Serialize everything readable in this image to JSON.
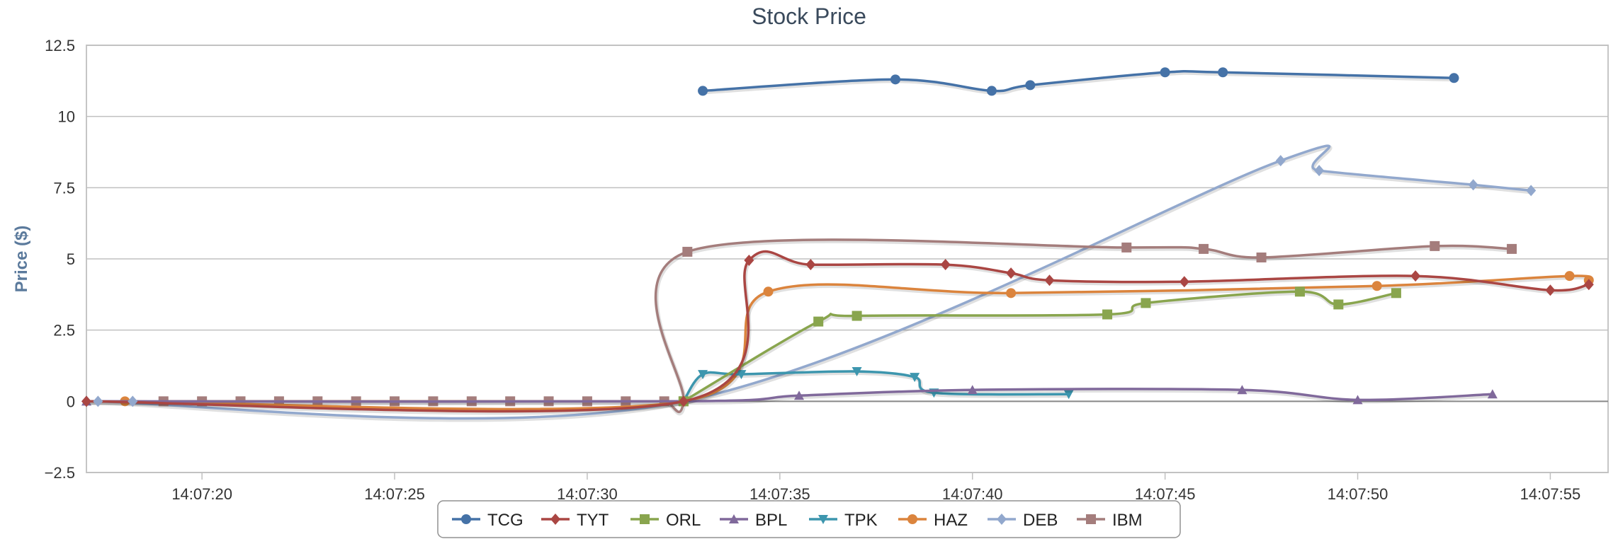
{
  "chart_data": {
    "type": "line",
    "title": "Stock Price",
    "ylabel": "Price ($)",
    "xlabel": "",
    "ylim": [
      -2.5,
      12.5
    ],
    "yticks": [
      -2.5,
      0,
      2.5,
      5,
      7.5,
      10,
      12.5
    ],
    "ytick_labels": [
      "−2.5",
      "0",
      "2.5",
      "5",
      "7.5",
      "10",
      "12.5"
    ],
    "xlim": [
      "14:07:17",
      "14:07:56.5"
    ],
    "xticks": [
      "14:07:20",
      "14:07:25",
      "14:07:30",
      "14:07:35",
      "14:07:40",
      "14:07:45",
      "14:07:50",
      "14:07:55"
    ],
    "grid": "horizontal",
    "legend": "bottom-center",
    "series": [
      {
        "name": "TCG",
        "color": "#4572A7",
        "marker": "circle",
        "x": [
          "14:07:33.0",
          "14:07:38.0",
          "14:07:40.5",
          "14:07:41.5",
          "14:07:45.0",
          "14:07:46.5",
          "14:07:52.5"
        ],
        "y": [
          10.9,
          11.3,
          10.9,
          11.1,
          11.55,
          11.55,
          11.35
        ]
      },
      {
        "name": "TYT",
        "color": "#AA4643",
        "marker": "diamond",
        "x": [
          "14:07:17.0",
          "14:07:32.5",
          "14:07:34.2",
          "14:07:35.8",
          "14:07:39.3",
          "14:07:41.0",
          "14:07:42.0",
          "14:07:45.5",
          "14:07:51.5",
          "14:07:55.0",
          "14:07:56.0"
        ],
        "y": [
          0,
          0,
          4.95,
          4.8,
          4.8,
          4.5,
          4.25,
          4.2,
          4.4,
          3.9,
          4.1
        ]
      },
      {
        "name": "ORL",
        "color": "#89A54E",
        "marker": "square",
        "x": [
          "14:07:32.5",
          "14:07:36.0",
          "14:07:37.0",
          "14:07:43.5",
          "14:07:44.5",
          "14:07:48.5",
          "14:07:49.5",
          "14:07:51.0"
        ],
        "y": [
          0,
          2.8,
          3.0,
          3.05,
          3.45,
          3.85,
          3.4,
          3.8
        ]
      },
      {
        "name": "BPL",
        "color": "#80699B",
        "marker": "triangle",
        "x": [
          "14:07:17.0",
          "14:07:32.5",
          "14:07:35.5",
          "14:07:40.0",
          "14:07:47.0",
          "14:07:50.0",
          "14:07:53.5"
        ],
        "y": [
          0,
          0,
          0.2,
          0.4,
          0.4,
          0.05,
          0.25
        ]
      },
      {
        "name": "TPK",
        "color": "#3D96AE",
        "marker": "triangle-down",
        "x": [
          "14:07:32.5",
          "14:07:33.0",
          "14:07:34.0",
          "14:07:37.0",
          "14:07:38.5",
          "14:07:39.0",
          "14:07:42.5"
        ],
        "y": [
          0,
          0.95,
          0.95,
          1.05,
          0.85,
          0.3,
          0.25
        ]
      },
      {
        "name": "HAZ",
        "color": "#DB843D",
        "marker": "circle",
        "x": [
          "14:07:18.0",
          "14:07:32.5",
          "14:07:34.7",
          "14:07:41.0",
          "14:07:50.5",
          "14:07:55.5",
          "14:07:56.0"
        ],
        "y": [
          0,
          0,
          3.85,
          3.8,
          4.05,
          4.4,
          4.25
        ]
      },
      {
        "name": "DEB",
        "color": "#92A8CD",
        "marker": "diamond",
        "x": [
          "14:07:17.0",
          "14:07:32.5",
          "14:07:48.0",
          "14:07:49.0",
          "14:07:53.0",
          "14:07:54.5"
        ],
        "y": [
          0,
          0,
          8.45,
          8.1,
          7.6,
          7.4
        ]
      },
      {
        "name": "IBM",
        "color": "#A47D7C",
        "marker": "square",
        "x": [
          "14:07:19.0",
          "14:07:20.0",
          "14:07:21.0",
          "14:07:22.0",
          "14:07:23.0",
          "14:07:24.0",
          "14:07:25.0",
          "14:07:26.0",
          "14:07:27.0",
          "14:07:28.0",
          "14:07:29.0",
          "14:07:30.0",
          "14:07:31.0",
          "14:07:32.0",
          "14:07:32.5",
          "14:07:32.6",
          "14:07:44.0",
          "14:07:46.0",
          "14:07:47.5",
          "14:07:52.0",
          "14:07:54.0"
        ],
        "y": [
          0,
          0,
          0,
          0,
          0,
          0,
          0,
          0,
          0,
          0,
          0,
          0,
          0,
          0,
          0,
          5.25,
          5.4,
          5.35,
          5.05,
          5.45,
          5.35
        ]
      }
    ]
  }
}
